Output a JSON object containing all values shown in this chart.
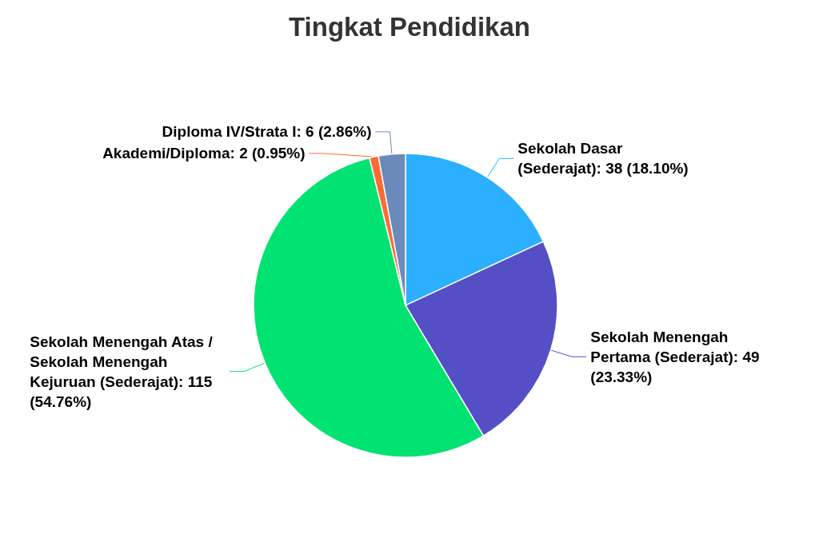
{
  "chart_data": {
    "type": "pie",
    "title": "Tingkat Pendidikan",
    "categories": [
      "Sekolah Dasar (Sederajat)",
      "Sekolah Menengah Pertama (Sederajat)",
      "Sekolah Menengah Atas / Sekolah Menengah Kejuruan (Sederajat)",
      "Akademi/Diploma",
      "Diploma IV/Strata I"
    ],
    "values": [
      38,
      49,
      115,
      2,
      6
    ],
    "value_labels": [
      "38 (18.10%)",
      "49 (23.33%)",
      "115 (54.76%)",
      "2 (0.95%)",
      "6 (2.86%)"
    ],
    "colors": [
      "#2caffe",
      "#544fc5",
      "#00e272",
      "#fe6a35",
      "#6b8abc"
    ]
  }
}
